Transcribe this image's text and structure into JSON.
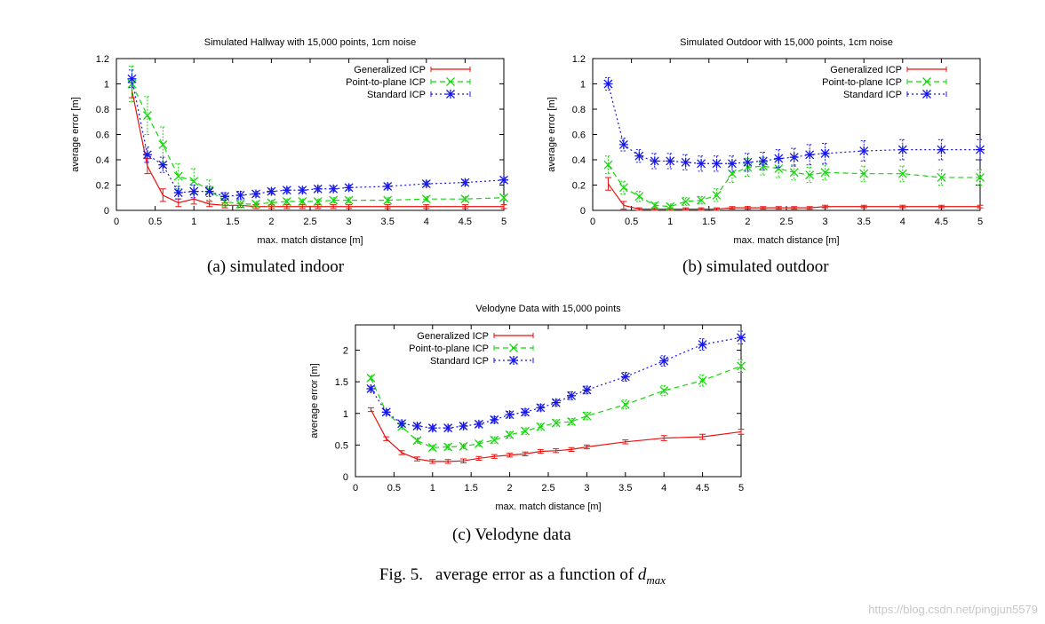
{
  "colors": {
    "generalized": "#e8120f",
    "point_to_plane": "#16d60c",
    "standard": "#1818e6",
    "axis": "#000000"
  },
  "figure": {
    "caption_label": "Fig. 5.",
    "caption_text": "average error as a function of",
    "caption_var": "d",
    "caption_sub": "max"
  },
  "watermark": "https://blog.csdn.net/pingjun5579",
  "subcaptions": [
    "(a)  simulated indoor",
    "(b)  simulated outdoor",
    "(c)  Velodyne data"
  ],
  "chart_data": [
    {
      "type": "line",
      "title": "Simulated Hallway with 15,000 points, 1cm noise",
      "xlabel": "max. match distance [m]",
      "ylabel": "average error [m]",
      "xlim": [
        0,
        5
      ],
      "ylim": [
        0,
        1.2
      ],
      "xticks": [
        0,
        0.5,
        1,
        1.5,
        2,
        2.5,
        3,
        3.5,
        4,
        4.5,
        5
      ],
      "xtick_labels": [
        "0",
        "0.5",
        "1",
        "1.5",
        "2",
        "2.5",
        "3",
        "3.5",
        "4",
        "4.5",
        "5"
      ],
      "yticks": [
        0,
        0.2,
        0.4,
        0.6,
        0.8,
        1,
        1.2
      ],
      "ytick_labels": [
        "0",
        "0.2",
        "0.4",
        "0.6",
        "0.8",
        "1",
        "1.2"
      ],
      "legend": "top-right",
      "x": [
        0.2,
        0.4,
        0.6,
        0.8,
        1.0,
        1.2,
        1.4,
        1.6,
        1.8,
        2.0,
        2.2,
        2.4,
        2.6,
        2.8,
        3.0,
        3.5,
        4.0,
        4.5,
        5.0
      ],
      "series": [
        {
          "name": "Generalized ICP",
          "style": "generalized",
          "values": [
            0.95,
            0.35,
            0.12,
            0.06,
            0.09,
            0.05,
            0.04,
            0.04,
            0.03,
            0.03,
            0.03,
            0.03,
            0.03,
            0.03,
            0.03,
            0.03,
            0.03,
            0.03,
            0.03
          ],
          "errors": [
            0.06,
            0.06,
            0.05,
            0.03,
            0.04,
            0.02,
            0.02,
            0.015,
            0.015,
            0.015,
            0.015,
            0.015,
            0.015,
            0.015,
            0.015,
            0.015,
            0.015,
            0.015,
            0.015
          ]
        },
        {
          "name": "Point-to-plane ICP",
          "style": "point_to_plane",
          "values": [
            1.0,
            0.75,
            0.52,
            0.27,
            0.23,
            0.16,
            0.07,
            0.05,
            0.05,
            0.06,
            0.07,
            0.07,
            0.07,
            0.08,
            0.08,
            0.08,
            0.09,
            0.09,
            0.1
          ],
          "errors": [
            0.14,
            0.15,
            0.14,
            0.1,
            0.1,
            0.08,
            0.04,
            0.03,
            0.02,
            0.02,
            0.02,
            0.02,
            0.02,
            0.02,
            0.02,
            0.02,
            0.02,
            0.02,
            0.02
          ]
        },
        {
          "name": "Standard ICP",
          "style": "standard",
          "values": [
            1.04,
            0.44,
            0.36,
            0.14,
            0.15,
            0.15,
            0.11,
            0.12,
            0.13,
            0.15,
            0.16,
            0.16,
            0.17,
            0.17,
            0.18,
            0.19,
            0.21,
            0.22,
            0.24
          ],
          "errors": [
            0.07,
            0.06,
            0.06,
            0.05,
            0.05,
            0.04,
            0.03,
            0.03,
            0.02,
            0.02,
            0.02,
            0.02,
            0.02,
            0.02,
            0.02,
            0.02,
            0.02,
            0.02,
            0.02
          ]
        }
      ]
    },
    {
      "type": "line",
      "title": "Simulated Outdoor with 15,000 points, 1cm noise",
      "xlabel": "max. match distance [m]",
      "ylabel": "average error [m]",
      "xlim": [
        0,
        5
      ],
      "ylim": [
        0,
        1.2
      ],
      "xticks": [
        0,
        0.5,
        1,
        1.5,
        2,
        2.5,
        3,
        3.5,
        4,
        4.5,
        5
      ],
      "xtick_labels": [
        "0",
        "0.5",
        "1",
        "1.5",
        "2",
        "2.5",
        "3",
        "3.5",
        "4",
        "4.5",
        "5"
      ],
      "yticks": [
        0,
        0.2,
        0.4,
        0.6,
        0.8,
        1,
        1.2
      ],
      "ytick_labels": [
        "0",
        "0.2",
        "0.4",
        "0.6",
        "0.8",
        "1",
        "1.2"
      ],
      "legend": "top-right",
      "x": [
        0.2,
        0.4,
        0.6,
        0.8,
        1.0,
        1.2,
        1.4,
        1.6,
        1.8,
        2.0,
        2.2,
        2.4,
        2.6,
        2.8,
        3.0,
        3.5,
        4.0,
        4.5,
        5.0
      ],
      "series": [
        {
          "name": "Generalized ICP",
          "style": "generalized",
          "values": [
            0.21,
            0.04,
            0.01,
            0.01,
            0.01,
            0.01,
            0.01,
            0.01,
            0.02,
            0.02,
            0.02,
            0.02,
            0.02,
            0.02,
            0.03,
            0.03,
            0.03,
            0.03,
            0.03
          ],
          "errors": [
            0.05,
            0.03,
            0.01,
            0.01,
            0.01,
            0.01,
            0.01,
            0.01,
            0.01,
            0.01,
            0.01,
            0.01,
            0.01,
            0.01,
            0.01,
            0.01,
            0.01,
            0.01,
            0.01
          ]
        },
        {
          "name": "Point-to-plane ICP",
          "style": "point_to_plane",
          "values": [
            0.36,
            0.18,
            0.11,
            0.04,
            0.03,
            0.07,
            0.08,
            0.12,
            0.29,
            0.34,
            0.35,
            0.33,
            0.3,
            0.28,
            0.3,
            0.29,
            0.29,
            0.26,
            0.26
          ],
          "errors": [
            0.07,
            0.05,
            0.04,
            0.02,
            0.02,
            0.03,
            0.03,
            0.05,
            0.07,
            0.07,
            0.07,
            0.07,
            0.06,
            0.06,
            0.06,
            0.06,
            0.06,
            0.06,
            0.06
          ]
        },
        {
          "name": "Standard ICP",
          "style": "standard",
          "values": [
            1.0,
            0.52,
            0.43,
            0.39,
            0.39,
            0.38,
            0.37,
            0.37,
            0.37,
            0.38,
            0.39,
            0.41,
            0.42,
            0.44,
            0.45,
            0.47,
            0.48,
            0.48,
            0.48
          ],
          "errors": [
            0.05,
            0.05,
            0.05,
            0.06,
            0.06,
            0.06,
            0.06,
            0.06,
            0.06,
            0.07,
            0.07,
            0.07,
            0.07,
            0.08,
            0.08,
            0.08,
            0.08,
            0.08,
            0.08
          ]
        }
      ]
    },
    {
      "type": "line",
      "title": "Velodyne Data with 15,000 points",
      "xlabel": "max. match distance [m]",
      "ylabel": "average error [m]",
      "xlim": [
        0,
        5
      ],
      "ylim": [
        0,
        2.4
      ],
      "xticks": [
        0,
        0.5,
        1,
        1.5,
        2,
        2.5,
        3,
        3.5,
        4,
        4.5,
        5
      ],
      "xtick_labels": [
        "0",
        "0.5",
        "1",
        "1.5",
        "2",
        "2.5",
        "3",
        "3.5",
        "4",
        "4.5",
        "5"
      ],
      "yticks": [
        0,
        0.5,
        1,
        1.5,
        2
      ],
      "ytick_labels": [
        "0",
        "0.5",
        "1",
        "1.5",
        "2"
      ],
      "legend": "top-left",
      "x": [
        0.2,
        0.4,
        0.6,
        0.8,
        1.0,
        1.2,
        1.4,
        1.6,
        1.8,
        2.0,
        2.2,
        2.4,
        2.6,
        2.8,
        3.0,
        3.5,
        4.0,
        4.5,
        5.0
      ],
      "series": [
        {
          "name": "Generalized ICP",
          "style": "generalized",
          "values": [
            1.06,
            0.6,
            0.38,
            0.28,
            0.24,
            0.24,
            0.25,
            0.29,
            0.32,
            0.34,
            0.36,
            0.4,
            0.41,
            0.43,
            0.47,
            0.55,
            0.61,
            0.63,
            0.71
          ],
          "errors": [
            0.03,
            0.03,
            0.03,
            0.03,
            0.03,
            0.03,
            0.03,
            0.03,
            0.03,
            0.03,
            0.03,
            0.03,
            0.03,
            0.03,
            0.03,
            0.03,
            0.04,
            0.04,
            0.04
          ]
        },
        {
          "name": "Point-to-plane ICP",
          "style": "point_to_plane",
          "values": [
            1.56,
            1.02,
            0.79,
            0.57,
            0.46,
            0.47,
            0.48,
            0.52,
            0.58,
            0.66,
            0.72,
            0.79,
            0.85,
            0.87,
            0.96,
            1.14,
            1.36,
            1.52,
            1.75
          ],
          "errors": [
            0.04,
            0.04,
            0.04,
            0.04,
            0.04,
            0.04,
            0.04,
            0.04,
            0.05,
            0.05,
            0.05,
            0.05,
            0.05,
            0.05,
            0.06,
            0.07,
            0.08,
            0.09,
            0.1
          ]
        },
        {
          "name": "Standard ICP",
          "style": "standard",
          "values": [
            1.39,
            1.02,
            0.84,
            0.8,
            0.77,
            0.77,
            0.8,
            0.83,
            0.9,
            0.98,
            1.02,
            1.09,
            1.17,
            1.28,
            1.37,
            1.58,
            1.83,
            2.09,
            2.2
          ],
          "errors": [
            0.04,
            0.04,
            0.04,
            0.04,
            0.04,
            0.04,
            0.04,
            0.04,
            0.05,
            0.05,
            0.05,
            0.05,
            0.05,
            0.06,
            0.06,
            0.07,
            0.08,
            0.09,
            0.1
          ]
        }
      ]
    }
  ]
}
